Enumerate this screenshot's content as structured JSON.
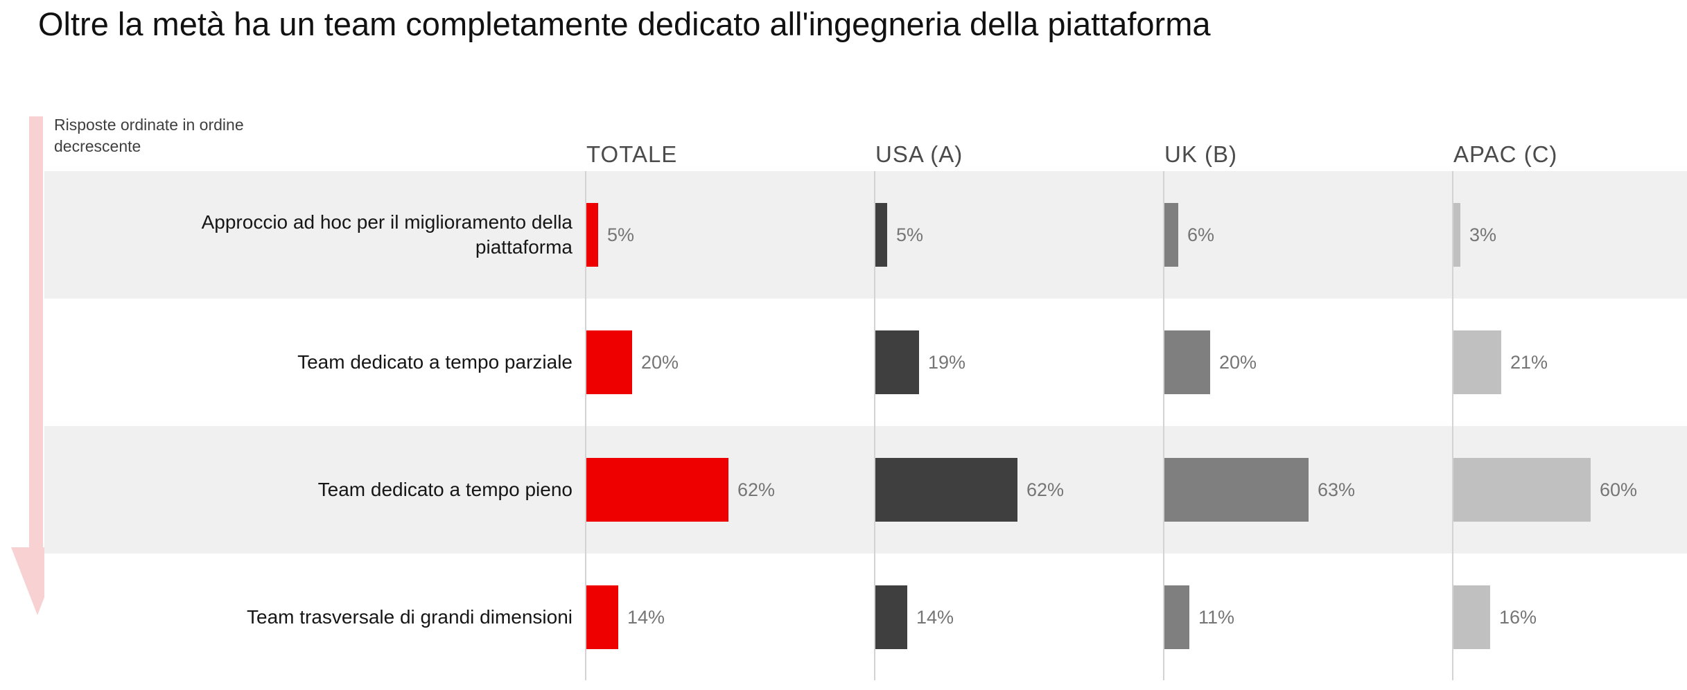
{
  "title": "Oltre la metà ha un team completamente dedicato all'ingegneria della piattaforma",
  "annotation": "Risposte ordinate in ordine decrescente",
  "colors": {
    "accent_red": "#ee0000",
    "arrow_pink": "#f8d2d3",
    "band_gray": "#f0f0f0",
    "axis_gray": "#d3d3d3",
    "value_label_gray": "#757575"
  },
  "chart_data": {
    "type": "bar",
    "orientation": "horizontal",
    "unit": "%",
    "xlim": [
      0,
      100
    ],
    "grid": "off",
    "sort_note": "Risposte ordinate in ordine decrescente",
    "categories": [
      "Approccio ad hoc per il miglioramento della piattaforma",
      "Team dedicato a tempo parziale",
      "Team dedicato a tempo pieno",
      "Team trasversale di grandi dimensioni"
    ],
    "series": [
      {
        "name": "TOTALE",
        "color": "#ee0000",
        "values": [
          5,
          20,
          62,
          14
        ]
      },
      {
        "name": "USA (A)",
        "color": "#3f3f3f",
        "values": [
          5,
          19,
          62,
          14
        ]
      },
      {
        "name": "UK (B)",
        "color": "#7f7f7f",
        "values": [
          6,
          20,
          63,
          11
        ]
      },
      {
        "name": "APAC (C)",
        "color": "#c0c0c0",
        "values": [
          3,
          21,
          60,
          16
        ]
      }
    ]
  }
}
